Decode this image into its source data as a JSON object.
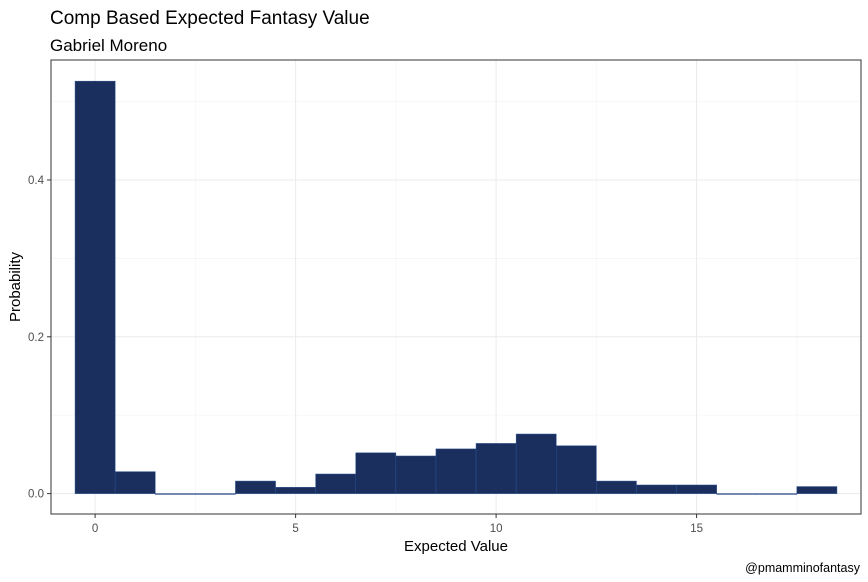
{
  "chart_data": {
    "type": "bar",
    "title": "Comp Based Expected Fantasy Value",
    "subtitle": "Gabriel Moreno",
    "xlabel": "Expected Value",
    "ylabel": "Probability",
    "caption": "@pmamminofantasy",
    "xlim": [
      -1.1,
      19.1
    ],
    "ylim": [
      -0.026,
      0.553
    ],
    "x_ticks": [
      0,
      5,
      10,
      15
    ],
    "y_ticks": [
      0.0,
      0.2,
      0.4
    ],
    "y_tick_labels": [
      "0.0",
      "0.2",
      "0.4"
    ],
    "bin_width": 1,
    "x": [
      0,
      1,
      2,
      3,
      4,
      5,
      6,
      7,
      8,
      9,
      10,
      11,
      12,
      13,
      14,
      15,
      16,
      17,
      18
    ],
    "values": [
      0.526,
      0.028,
      0.0,
      0.0,
      0.016,
      0.008,
      0.025,
      0.052,
      0.048,
      0.057,
      0.064,
      0.076,
      0.061,
      0.016,
      0.011,
      0.011,
      0.0,
      0.0,
      0.009
    ],
    "bar_color": "#1b2f5e",
    "bar_outline_color": "#2a4f8f",
    "grid": true,
    "legend": "none"
  }
}
